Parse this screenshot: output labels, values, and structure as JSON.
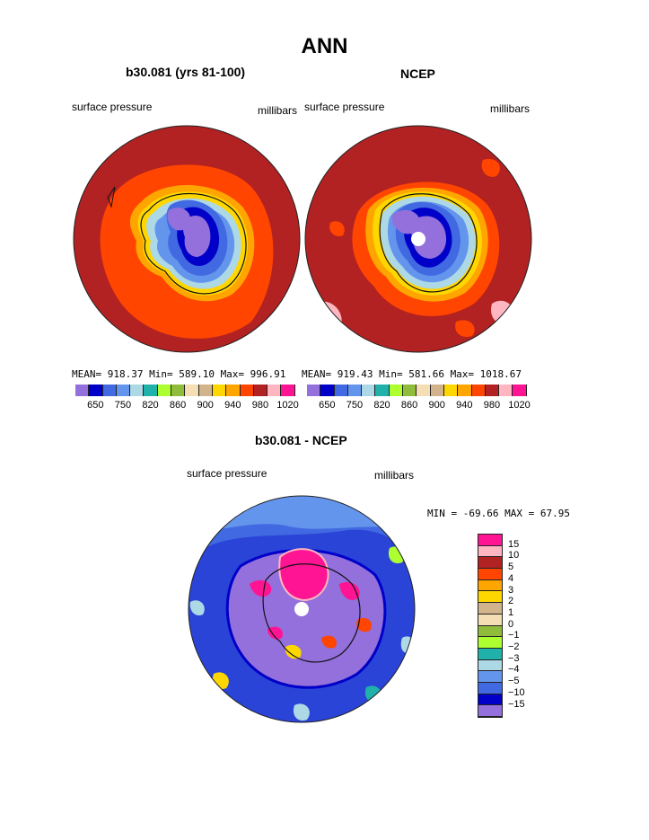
{
  "title": "ANN",
  "panels": [
    {
      "title": "b30.081 (yrs 81-100)",
      "left_label": "surface pressure",
      "right_label": "millibars",
      "stats": "MEAN= 918.37   Min= 589.10   Max= 996.91"
    },
    {
      "title": "NCEP",
      "left_label": "surface pressure",
      "right_label": "millibars",
      "stats": "MEAN= 919.43   Min= 581.66   Max= 1018.67"
    },
    {
      "title": "b30.081 - NCEP",
      "left_label": "surface pressure",
      "right_label": "millibars",
      "stats": "MIN = -69.66 MAX =  67.95"
    }
  ],
  "colorbar_abs": {
    "labels": [
      "650",
      "750",
      "820",
      "860",
      "900",
      "940",
      "980",
      "1020"
    ],
    "colors": [
      "#9370db",
      "#0000c8",
      "#4169e1",
      "#6495ed",
      "#add8e6",
      "#20b2aa",
      "#adff2f",
      "#8fbc3a",
      "#f5deb3",
      "#d2b48c",
      "#ffd700",
      "#ffa500",
      "#ff4500",
      "#b22222",
      "#ffb6c1",
      "#ff1493"
    ]
  },
  "colorbar_diff": {
    "labels": [
      "15",
      "10",
      "5",
      "4",
      "3",
      "2",
      "1",
      "0",
      "−1",
      "−2",
      "−3",
      "−4",
      "−5",
      "−10",
      "−15"
    ],
    "colors": [
      "#ff1493",
      "#ffb6c1",
      "#b22222",
      "#ff4500",
      "#ffa500",
      "#ffd700",
      "#d2b48c",
      "#f5deb3",
      "#8fbc3a",
      "#adff2f",
      "#20b2aa",
      "#add8e6",
      "#6495ed",
      "#4169e1",
      "#0000c8",
      "#9370db"
    ]
  }
}
